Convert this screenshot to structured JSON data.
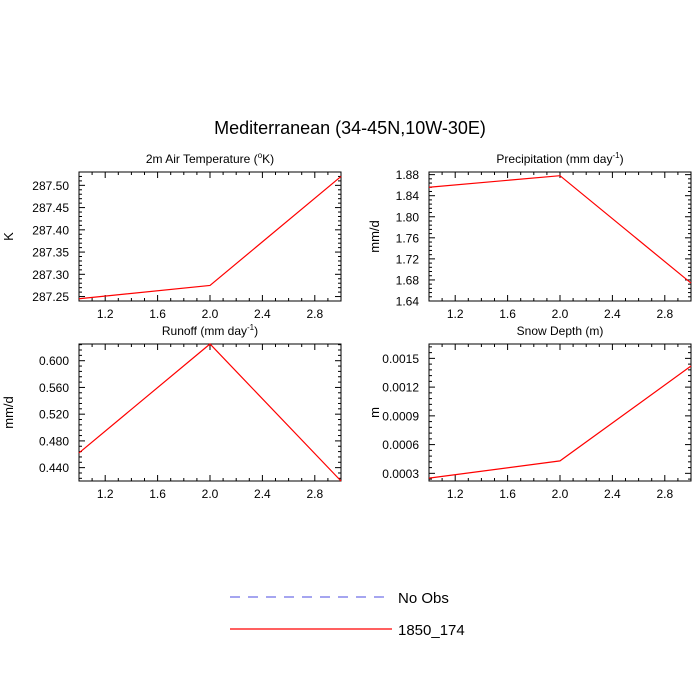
{
  "figure": {
    "title": "Mediterranean (34-45N,10W-30E)"
  },
  "legend": {
    "items": [
      {
        "label": "No Obs",
        "color": "#6f6fe8",
        "dashed": true
      },
      {
        "label": "1850_174",
        "color": "#ff0000",
        "dashed": false
      }
    ]
  },
  "chart_data": [
    {
      "type": "line",
      "title": "2m Air Temperature (°K)",
      "title_parts": [
        "2m Air Temperature (",
        "o",
        "K)"
      ],
      "ylabel": "K",
      "xlim": [
        1.0,
        3.0
      ],
      "ylim": [
        287.24,
        287.53
      ],
      "xticks": [
        1.2,
        1.6,
        2.0,
        2.4,
        2.8
      ],
      "xtick_labels": [
        "1.2",
        "1.6",
        "2.0",
        "2.4",
        "2.8"
      ],
      "yticks": [
        287.25,
        287.3,
        287.35,
        287.4,
        287.45,
        287.5
      ],
      "ytick_labels": [
        "287.25",
        "287.30",
        "287.35",
        "287.40",
        "287.45",
        "287.50"
      ],
      "series": [
        {
          "color": "#ff0000",
          "x": [
            1.0,
            2.0,
            3.0
          ],
          "y": [
            287.245,
            287.275,
            287.52
          ]
        }
      ]
    },
    {
      "type": "line",
      "title": "Precipitation (mm day-1)",
      "title_parts": [
        "Precipitation (mm day",
        "-1",
        ")"
      ],
      "ylabel": "mm/d",
      "xlim": [
        1.0,
        3.0
      ],
      "ylim": [
        1.64,
        1.885
      ],
      "xticks": [
        1.2,
        1.6,
        2.0,
        2.4,
        2.8
      ],
      "xtick_labels": [
        "1.2",
        "1.6",
        "2.0",
        "2.4",
        "2.8"
      ],
      "yticks": [
        1.64,
        1.68,
        1.72,
        1.76,
        1.8,
        1.84,
        1.88
      ],
      "ytick_labels": [
        "1.64",
        "1.68",
        "1.72",
        "1.76",
        "1.80",
        "1.84",
        "1.88"
      ],
      "series": [
        {
          "color": "#ff0000",
          "x": [
            1.0,
            2.0,
            3.0
          ],
          "y": [
            1.856,
            1.878,
            1.674
          ]
        }
      ]
    },
    {
      "type": "line",
      "title": "Runoff (mm day-1)",
      "title_parts": [
        "Runoff (mm day",
        "-1",
        ")"
      ],
      "ylabel": "mm/d",
      "xlim": [
        1.0,
        3.0
      ],
      "ylim": [
        0.42,
        0.625
      ],
      "xticks": [
        1.2,
        1.6,
        2.0,
        2.4,
        2.8
      ],
      "xtick_labels": [
        "1.2",
        "1.6",
        "2.0",
        "2.4",
        "2.8"
      ],
      "yticks": [
        0.44,
        0.48,
        0.52,
        0.56,
        0.6
      ],
      "ytick_labels": [
        "0.440",
        "0.480",
        "0.520",
        "0.560",
        "0.600"
      ],
      "series": [
        {
          "color": "#ff0000",
          "x": [
            1.0,
            2.0,
            3.0
          ],
          "y": [
            0.462,
            0.625,
            0.42
          ]
        }
      ]
    },
    {
      "type": "line",
      "title": "Snow Depth (m)",
      "title_parts": [
        "Snow Depth (m)",
        "",
        ""
      ],
      "ylabel": "m",
      "xlim": [
        1.0,
        3.0
      ],
      "ylim": [
        0.00022,
        0.00165
      ],
      "xticks": [
        1.2,
        1.6,
        2.0,
        2.4,
        2.8
      ],
      "xtick_labels": [
        "1.2",
        "1.6",
        "2.0",
        "2.4",
        "2.8"
      ],
      "yticks": [
        0.0003,
        0.0006,
        0.0009,
        0.0012,
        0.0015
      ],
      "ytick_labels": [
        "0.0003",
        "0.0006",
        "0.0009",
        "0.0012",
        "0.0015"
      ],
      "series": [
        {
          "color": "#ff0000",
          "x": [
            1.0,
            2.0,
            3.0
          ],
          "y": [
            0.00025,
            0.00043,
            0.00142
          ]
        }
      ]
    }
  ]
}
